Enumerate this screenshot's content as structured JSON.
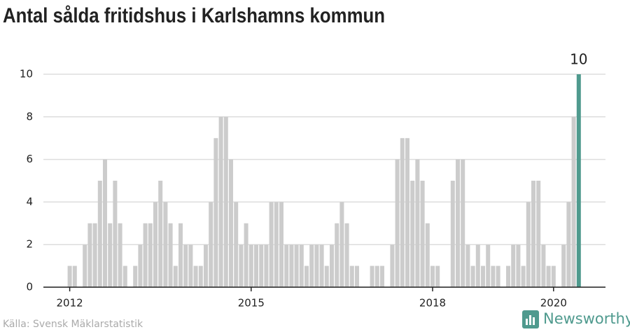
{
  "chart_data": {
    "type": "bar",
    "title": "Antal sålda fritidshus i Karlshamns kommun",
    "source": "Källa: Svensk Mäklarstatistik",
    "brand": "Newsworthy",
    "categories": [
      "2012",
      null,
      null,
      null,
      null,
      null,
      null,
      null,
      null,
      null,
      null,
      null,
      null,
      null,
      null,
      null,
      null,
      null,
      null,
      null,
      null,
      null,
      null,
      null,
      null,
      null,
      null,
      null,
      null,
      null,
      null,
      null,
      null,
      null,
      null,
      null,
      "2015",
      null,
      null,
      null,
      null,
      null,
      null,
      null,
      null,
      null,
      null,
      null,
      null,
      null,
      null,
      null,
      null,
      null,
      null,
      null,
      null,
      null,
      null,
      null,
      null,
      null,
      null,
      null,
      null,
      null,
      null,
      null,
      null,
      null,
      null,
      null,
      "2018",
      null,
      null,
      null,
      null,
      null,
      null,
      null,
      null,
      null,
      null,
      null,
      null,
      null,
      null,
      null,
      null,
      null,
      null,
      null,
      null,
      null,
      null,
      null,
      "2020",
      null,
      null,
      null,
      null,
      null
    ],
    "values": [
      1,
      1,
      0,
      2,
      3,
      3,
      5,
      6,
      3,
      5,
      3,
      1,
      0,
      1,
      2,
      3,
      3,
      4,
      5,
      4,
      3,
      1,
      3,
      2,
      2,
      1,
      1,
      2,
      4,
      7,
      8,
      8,
      6,
      4,
      2,
      3,
      2,
      2,
      2,
      2,
      4,
      4,
      4,
      2,
      2,
      2,
      2,
      1,
      2,
      2,
      2,
      1,
      2,
      3,
      4,
      3,
      1,
      1,
      0,
      0,
      1,
      1,
      1,
      0,
      2,
      6,
      7,
      7,
      5,
      6,
      5,
      3,
      1,
      1,
      0,
      0,
      5,
      6,
      6,
      2,
      1,
      2,
      1,
      2,
      1,
      1,
      0,
      1,
      2,
      2,
      1,
      4,
      5,
      5,
      2,
      1,
      1,
      0,
      2,
      4,
      8,
      10
    ],
    "color": "#cccccc",
    "highlight_color": "#4f9a8e",
    "highlight_index": 101,
    "ylim": [
      0,
      10
    ],
    "yticks": [
      0,
      2,
      4,
      6,
      8,
      10
    ],
    "grid": true
  }
}
